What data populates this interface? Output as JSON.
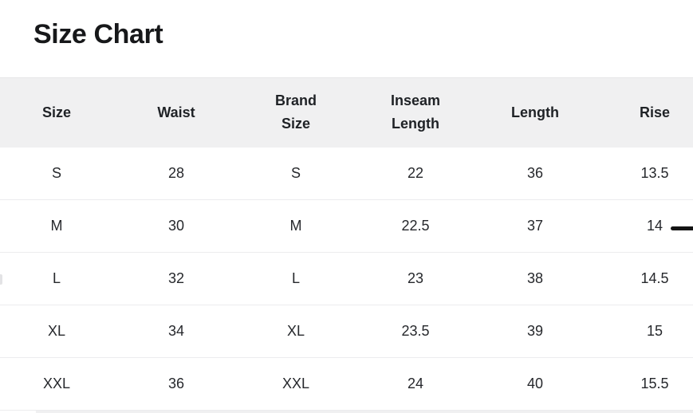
{
  "page": {
    "title": "Size Chart"
  },
  "table": {
    "columns": [
      {
        "key": "size",
        "label": "Size"
      },
      {
        "key": "waist",
        "label": "Waist"
      },
      {
        "key": "brand_size",
        "label": "Brand Size"
      },
      {
        "key": "inseam_length",
        "label": "Inseam Length"
      },
      {
        "key": "length",
        "label": "Length"
      },
      {
        "key": "rise",
        "label": "Rise"
      }
    ],
    "rows": [
      {
        "size": "S",
        "waist": "28",
        "brand_size": "S",
        "inseam_length": "22",
        "length": "36",
        "rise": "13.5"
      },
      {
        "size": "M",
        "waist": "30",
        "brand_size": "M",
        "inseam_length": "22.5",
        "length": "37",
        "rise": "14"
      },
      {
        "size": "L",
        "waist": "32",
        "brand_size": "L",
        "inseam_length": "23",
        "length": "38",
        "rise": "14.5"
      },
      {
        "size": "XL",
        "waist": "34",
        "brand_size": "XL",
        "inseam_length": "23.5",
        "length": "39",
        "rise": "15"
      },
      {
        "size": "XXL",
        "waist": "36",
        "brand_size": "XXL",
        "inseam_length": "24",
        "length": "40",
        "rise": "15.5"
      }
    ]
  },
  "colors": {
    "header_background": "#f0f0f1",
    "row_divider": "#ececee",
    "title_text": "#17181a",
    "body_text": "#26282c",
    "dash_indicator": "#141414"
  }
}
